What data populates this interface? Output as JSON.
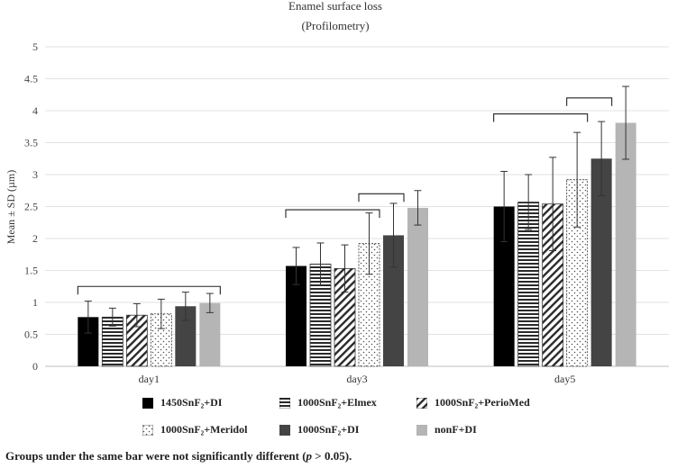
{
  "chart_data": {
    "type": "bar",
    "title": "Enamel surface loss",
    "subtitle": "(Profilometry)",
    "ylabel": "Mean ± SD (µm)",
    "xlabel": "",
    "ylim": [
      0,
      5
    ],
    "yticks": [
      "0",
      "0.5",
      "1",
      "1.5",
      "2",
      "2.5",
      "3",
      "3.5",
      "4",
      "4.5",
      "5"
    ],
    "grid": true,
    "categories": [
      "day1",
      "day3",
      "day5"
    ],
    "series": [
      {
        "name": "1450SnF₂+DI",
        "pattern": "solid-black",
        "values": [
          0.77,
          1.57,
          2.5
        ],
        "sd": [
          0.25,
          0.29,
          0.55
        ]
      },
      {
        "name": "1000SnF₂+Elmex",
        "pattern": "horizontal-lines",
        "values": [
          0.77,
          1.6,
          2.57
        ],
        "sd": [
          0.14,
          0.33,
          0.43
        ]
      },
      {
        "name": "1000SnF₂+PerioMed",
        "pattern": "diagonal-lines",
        "values": [
          0.8,
          1.53,
          2.54
        ],
        "sd": [
          0.18,
          0.37,
          0.73
        ]
      },
      {
        "name": "1000SnF₂+Meridol",
        "pattern": "dots",
        "values": [
          0.82,
          1.92,
          2.92
        ],
        "sd": [
          0.23,
          0.48,
          0.74
        ]
      },
      {
        "name": "1000SnF₂+DI",
        "pattern": "dark-gray",
        "values": [
          0.94,
          2.05,
          3.25
        ],
        "sd": [
          0.22,
          0.5,
          0.58
        ]
      },
      {
        "name": "nonF+DI",
        "pattern": "light-gray",
        "values": [
          0.99,
          2.48,
          3.81
        ],
        "sd": [
          0.15,
          0.27,
          0.57
        ]
      }
    ],
    "significance_brackets": [
      {
        "category": "day1",
        "from_series": 0,
        "to_series": 5,
        "level": 1.25
      },
      {
        "category": "day3",
        "from_series": 0,
        "to_series": 3,
        "level": 2.45
      },
      {
        "category": "day3",
        "from_series": 3,
        "to_series": 4,
        "level": 2.7
      },
      {
        "category": "day5",
        "from_series": 0,
        "to_series": 3,
        "level": 3.95
      },
      {
        "category": "day5",
        "from_series": 3,
        "to_series": 4,
        "level": 4.2
      }
    ],
    "legend_position": "bottom"
  },
  "footnote": {
    "before": "Groups under the same bar were not significantly different (",
    "variable": "p",
    "after": " > 0.05)."
  }
}
